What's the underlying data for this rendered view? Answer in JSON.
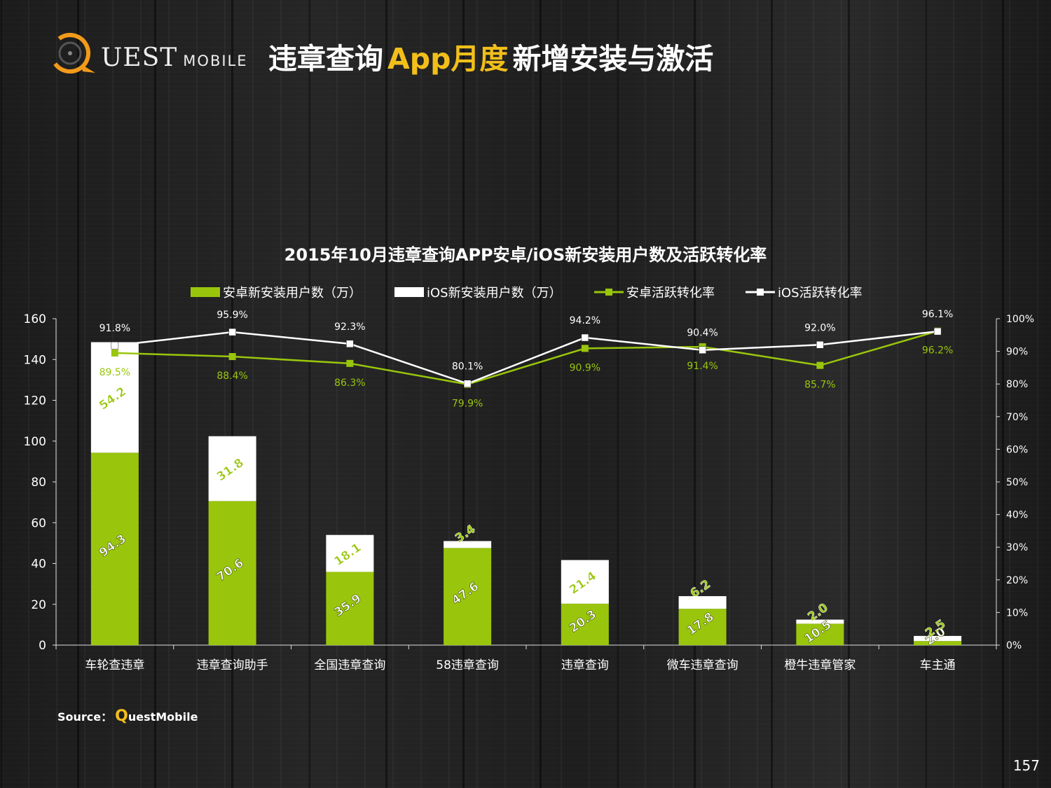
{
  "header": {
    "logo_main": "UEST",
    "logo_sub": "MOBILE",
    "title_pre": "违章查询",
    "title_accent": "App月度",
    "title_post": "新增安装与激活"
  },
  "footer": {
    "source_label": "Source：",
    "source_q": "Q",
    "source_name": "uestMobile",
    "page_number": "157"
  },
  "colors": {
    "android": "#99c60c",
    "ios": "#ffffff",
    "accent": "#f2bf1a",
    "background": "#1b1b1b"
  },
  "chart_data": {
    "type": "bar",
    "stacked": true,
    "title": "2015年10月违章查询APP安卓/iOS新安装用户数及活跃转化率",
    "categories": [
      "车轮查违章",
      "违章查询助手",
      "全国违章查询",
      "58违章查询",
      "违章查询",
      "微车违章查询",
      "橙牛违章管家",
      "车主通"
    ],
    "series": [
      {
        "name": "安卓新安装用户数（万）",
        "type": "bar",
        "axis": "left",
        "color": "#99c60c",
        "values": [
          94.3,
          70.6,
          35.9,
          47.6,
          20.3,
          17.8,
          10.5,
          2.0
        ],
        "labels": [
          "94.3",
          "70.6",
          "35.9",
          "47.6",
          "20.3",
          "17.8",
          "10.5",
          "2.0"
        ]
      },
      {
        "name": "iOS新安装用户数（万）",
        "type": "bar",
        "axis": "left",
        "color": "#ffffff",
        "values": [
          54.2,
          31.8,
          18.1,
          3.4,
          21.4,
          6.2,
          2.0,
          2.5
        ],
        "labels": [
          "54.2",
          "31.8",
          "18.1",
          "3.4",
          "21.4",
          "6.2",
          "2.0",
          "2.5"
        ]
      },
      {
        "name": "安卓活跃转化率",
        "type": "line",
        "axis": "right",
        "color": "#99c60c",
        "values": [
          89.5,
          88.4,
          86.3,
          79.9,
          90.9,
          91.4,
          85.7,
          96.2
        ],
        "labels": [
          "89.5%",
          "88.4%",
          "86.3%",
          "79.9%",
          "90.9%",
          "91.4%",
          "85.7%",
          "96.2%"
        ]
      },
      {
        "name": "iOS活跃转化率",
        "type": "line",
        "axis": "right",
        "color": "#ffffff",
        "values": [
          91.8,
          95.9,
          92.3,
          80.1,
          94.2,
          90.4,
          92.0,
          96.1
        ],
        "labels": [
          "91.8%",
          "95.9%",
          "92.3%",
          "80.1%",
          "94.2%",
          "90.4%",
          "92.0%",
          "96.1%"
        ]
      }
    ],
    "y_left": {
      "min": 0,
      "max": 160,
      "ticks": [
        "0",
        "20",
        "40",
        "60",
        "80",
        "100",
        "120",
        "140",
        "160"
      ]
    },
    "y_right": {
      "min": 0,
      "max": 100,
      "ticks": [
        "0%",
        "10%",
        "20%",
        "30%",
        "40%",
        "50%",
        "60%",
        "70%",
        "80%",
        "90%",
        "100%"
      ]
    },
    "legend_position": "top",
    "grid": false
  }
}
